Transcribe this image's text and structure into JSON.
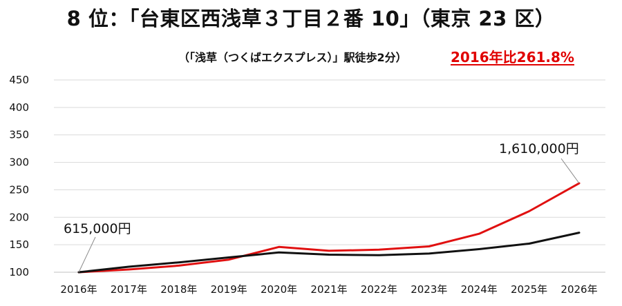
{
  "header": {
    "title": "8 位：「台東区西浅草３丁目２番 10」（東京 23 区）",
    "subtitle": "（「浅草（つくばエクスプレス）」駅徒歩2分）",
    "highlight": "2016年比261.8%"
  },
  "colors": {
    "red_series": "#e01010",
    "black_series": "#111111",
    "highlight": "#e00000",
    "grid": "#d9d9d9"
  },
  "chart_data": {
    "type": "line",
    "categories": [
      "2016年",
      "2017年",
      "2018年",
      "2019年",
      "2020年",
      "2021年",
      "2022年",
      "2023年",
      "2024年",
      "2025年",
      "2026年"
    ],
    "ylim": [
      100,
      450
    ],
    "yticks": [
      100,
      150,
      200,
      250,
      300,
      350,
      400,
      450
    ],
    "grid": true,
    "legend": "none",
    "series": [
      {
        "color": "#e01010",
        "values": [
          100,
          105,
          112,
          123,
          146,
          139,
          141,
          147,
          170,
          211,
          262
        ]
      },
      {
        "color": "#111111",
        "values": [
          100,
          110,
          118,
          127,
          136,
          132,
          131,
          134,
          142,
          152,
          172
        ]
      }
    ],
    "annotations": [
      {
        "text": "615,000円",
        "category": "2016年",
        "value": 100
      },
      {
        "text": "1,610,000円",
        "category": "2026年",
        "value": 262
      }
    ]
  }
}
